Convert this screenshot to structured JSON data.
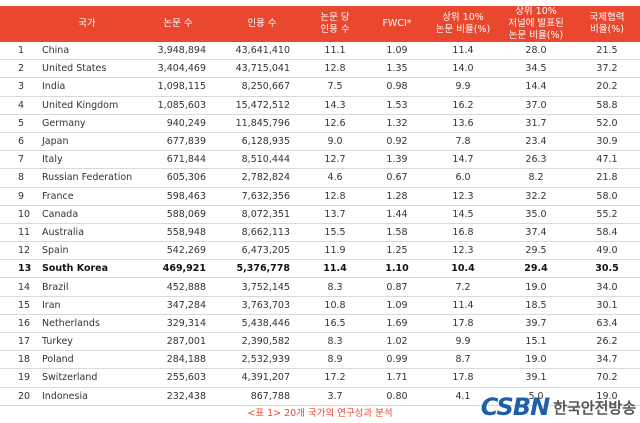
{
  "table": {
    "headers": [
      "",
      "국가",
      "논문 수",
      "인용 수",
      "논문 당\n인용 수",
      "FWCI*",
      "상위 10%\n논문 비율(%)",
      "상위 10%\n저널에 발표된\n논문 비율(%)",
      "국제협력\n비율(%)"
    ],
    "rows": [
      [
        "1",
        "China",
        "3,948,894",
        "43,641,410",
        "11.1",
        "1.09",
        "11.4",
        "28.0",
        "21.5"
      ],
      [
        "2",
        "United States",
        "3,404,469",
        "43,715,041",
        "12.8",
        "1.35",
        "14.0",
        "34.5",
        "37.2"
      ],
      [
        "3",
        "India",
        "1,098,115",
        "8,250,667",
        "7.5",
        "0.98",
        "9.9",
        "14.4",
        "20.2"
      ],
      [
        "4",
        "United Kingdom",
        "1,085,603",
        "15,472,512",
        "14.3",
        "1.53",
        "16.2",
        "37.0",
        "58.8"
      ],
      [
        "5",
        "Germany",
        "940,249",
        "11,845,796",
        "12.6",
        "1.32",
        "13.6",
        "31.7",
        "52.0"
      ],
      [
        "6",
        "Japan",
        "677,839",
        "6,128,935",
        "9.0",
        "0.92",
        "7.8",
        "23.4",
        "30.9"
      ],
      [
        "7",
        "Italy",
        "671,844",
        "8,510,444",
        "12.7",
        "1.39",
        "14.7",
        "26.3",
        "47.1"
      ],
      [
        "8",
        "Russian Federation",
        "605,306",
        "2,782,824",
        "4.6",
        "0.67",
        "6.0",
        "8.2",
        "21.8"
      ],
      [
        "9",
        "France",
        "598,463",
        "7,632,356",
        "12.8",
        "1.28",
        "12.3",
        "32.2",
        "58.0"
      ],
      [
        "10",
        "Canada",
        "588,069",
        "8,072,351",
        "13.7",
        "1.44",
        "14.5",
        "35.0",
        "55.2"
      ],
      [
        "11",
        "Australia",
        "558,948",
        "8,662,113",
        "15.5",
        "1.58",
        "16.8",
        "37.4",
        "58.4"
      ],
      [
        "12",
        "Spain",
        "542,269",
        "6,473,205",
        "11.9",
        "1.25",
        "12.3",
        "29.5",
        "49.0"
      ],
      [
        "13",
        "South Korea",
        "469,921",
        "5,376,778",
        "11.4",
        "1.10",
        "10.4",
        "29.4",
        "30.5"
      ],
      [
        "14",
        "Brazil",
        "452,888",
        "3,752,145",
        "8.3",
        "0.87",
        "7.2",
        "19.0",
        "34.0"
      ],
      [
        "15",
        "Iran",
        "347,284",
        "3,763,703",
        "10.8",
        "1.09",
        "11.4",
        "18.5",
        "30.1"
      ],
      [
        "16",
        "Netherlands",
        "329,314",
        "5,438,446",
        "16.5",
        "1.69",
        "17.8",
        "39.7",
        "63.4"
      ],
      [
        "17",
        "Turkey",
        "287,001",
        "2,390,582",
        "8.3",
        "1.02",
        "9.9",
        "15.1",
        "26.2"
      ],
      [
        "18",
        "Poland",
        "284,188",
        "2,532,939",
        "8.9",
        "0.99",
        "8.7",
        "19.0",
        "34.7"
      ],
      [
        "19",
        "Switzerland",
        "255,603",
        "4,391,207",
        "17.2",
        "1.71",
        "17.8",
        "39.1",
        "70.2"
      ],
      [
        "20",
        "Indonesia",
        "232,438",
        "867,788",
        "3.7",
        "0.80",
        "4.1",
        "5.0",
        "19.0"
      ]
    ],
    "highlight_row_index": 12
  },
  "caption": "<표 1> 20개 국가의 연구성과 분석",
  "logo": {
    "mark": "CSBN",
    "text": "한국안전방송"
  },
  "colors": {
    "header_bg": "#e9482f",
    "header_text": "#ffffff",
    "caption": "#e9482f",
    "logo_mark": "#1f5fa8"
  }
}
